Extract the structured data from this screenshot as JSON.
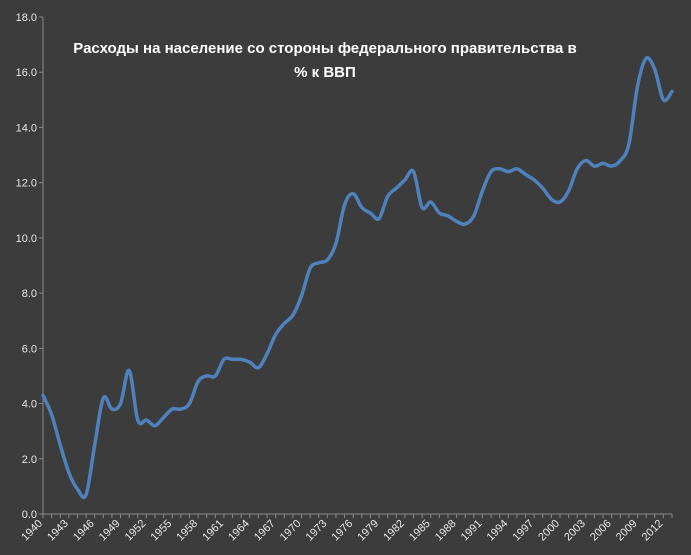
{
  "chart_data": {
    "type": "line",
    "title_lines": [
      "Расходы на население со стороны федерального правительства в",
      "% к ВВП"
    ],
    "xlabel": "",
    "ylabel": "",
    "xlim": [
      1940,
      2013
    ],
    "ylim": [
      0,
      18
    ],
    "grid": false,
    "legend": "none",
    "x_ticks": [
      "1940",
      "1943",
      "1946",
      "1949",
      "1952",
      "1955",
      "1958",
      "1961",
      "1964",
      "1967",
      "1970",
      "1973",
      "1976",
      "1979",
      "1982",
      "1985",
      "1988",
      "1991",
      "1994",
      "1997",
      "2000",
      "2003",
      "2006",
      "2009",
      "2012"
    ],
    "y_ticks": [
      "0.0",
      "2.0",
      "4.0",
      "6.0",
      "8.0",
      "10.0",
      "12.0",
      "14.0",
      "16.0",
      "18.0"
    ],
    "line_color": "#4f81bd",
    "series": [
      {
        "x": [
          1940,
          1941,
          1942,
          1943,
          1944,
          1945,
          1946,
          1947,
          1948,
          1949,
          1950,
          1951,
          1952,
          1953,
          1954,
          1955,
          1956,
          1957,
          1958,
          1959,
          1960,
          1961,
          1962,
          1963,
          1964,
          1965,
          1966,
          1967,
          1968,
          1969,
          1970,
          1971,
          1972,
          1973,
          1974,
          1975,
          1976,
          1977,
          1978,
          1979,
          1980,
          1981,
          1982,
          1983,
          1984,
          1985,
          1986,
          1987,
          1988,
          1989,
          1990,
          1991,
          1992,
          1993,
          1994,
          1995,
          1996,
          1997,
          1998,
          1999,
          2000,
          2001,
          2002,
          2003,
          2004,
          2005,
          2006,
          2007,
          2008,
          2009,
          2010,
          2011,
          2012,
          2013
        ],
        "values": [
          4.3,
          3.6,
          2.5,
          1.5,
          0.9,
          0.7,
          2.5,
          4.2,
          3.8,
          4.0,
          5.2,
          3.4,
          3.4,
          3.2,
          3.5,
          3.8,
          3.8,
          4.0,
          4.8,
          5.0,
          5.0,
          5.6,
          5.6,
          5.6,
          5.5,
          5.3,
          5.8,
          6.5,
          6.9,
          7.2,
          7.9,
          8.9,
          9.1,
          9.2,
          9.8,
          11.2,
          11.6,
          11.1,
          10.9,
          10.7,
          11.5,
          11.8,
          12.1,
          12.4,
          11.1,
          11.3,
          10.9,
          10.8,
          10.6,
          10.5,
          10.8,
          11.7,
          12.4,
          12.5,
          12.4,
          12.5,
          12.3,
          12.1,
          11.8,
          11.4,
          11.3,
          11.7,
          12.5,
          12.8,
          12.6,
          12.7,
          12.6,
          12.8,
          13.4,
          15.5,
          16.5,
          16.1,
          15.0,
          15.3
        ]
      }
    ]
  }
}
